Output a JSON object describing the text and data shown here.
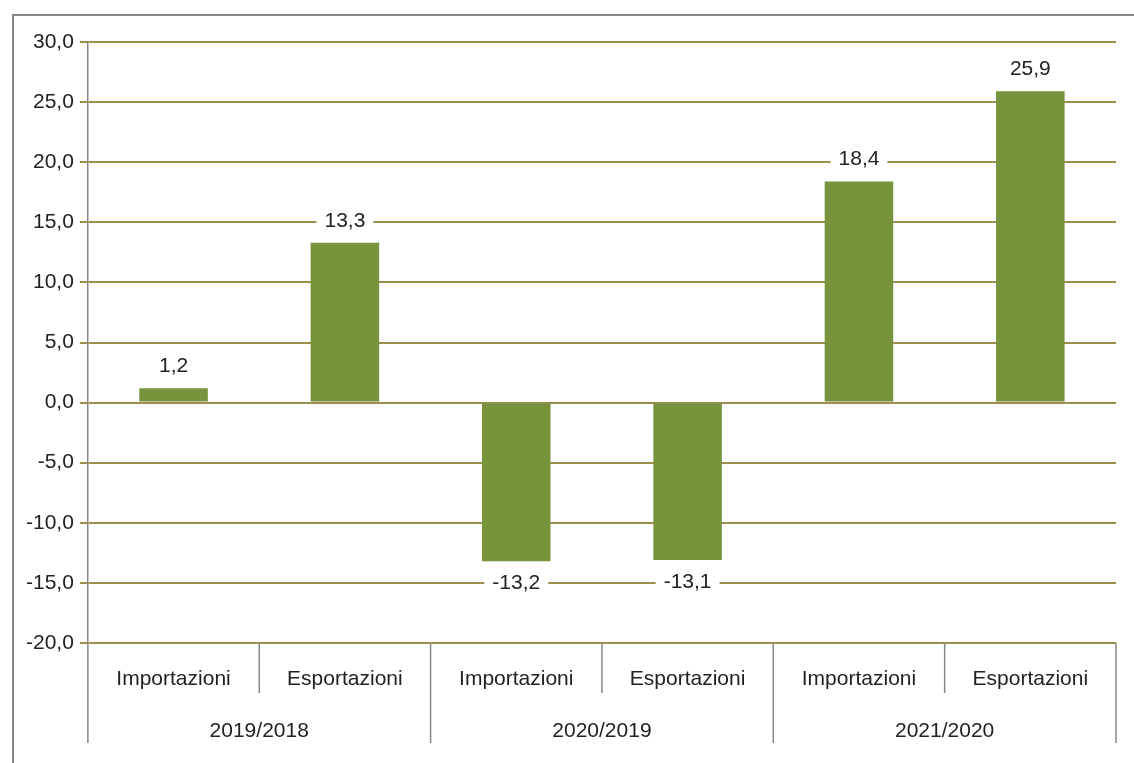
{
  "chart_data": {
    "type": "bar",
    "categories": [
      "Importazioni",
      "Esportazioni",
      "Importazioni",
      "Esportazioni",
      "Importazioni",
      "Esportazioni"
    ],
    "values": [
      1.2,
      13.3,
      -13.2,
      -13.1,
      18.4,
      25.9
    ],
    "value_labels": [
      "1,2",
      "13,3",
      "-13,2",
      "-13,1",
      "18,4",
      "25,9"
    ],
    "color": "#77933c",
    "annotations": [
      "2019/2018",
      "2020/2019",
      "2021/2020"
    ],
    "ylim": [
      -20,
      30
    ],
    "yticks": [
      {
        "value": -20,
        "label": "-20,0"
      },
      {
        "value": -15,
        "label": "-15,0"
      },
      {
        "value": -10,
        "label": "-10,0"
      },
      {
        "value": -5,
        "label": "-5,0"
      },
      {
        "value": 0,
        "label": "0,0"
      },
      {
        "value": 5,
        "label": "5,0"
      },
      {
        "value": 10,
        "label": "10,0"
      },
      {
        "value": 15,
        "label": "15,0"
      },
      {
        "value": 20,
        "label": "20,0"
      },
      {
        "value": 25,
        "label": "25,0"
      },
      {
        "value": 30,
        "label": "30,0"
      }
    ],
    "grid": "y",
    "legend": false
  }
}
